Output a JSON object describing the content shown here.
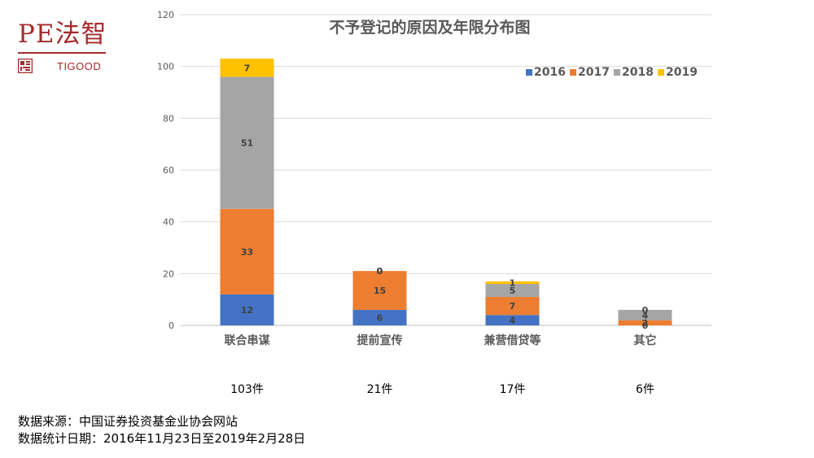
{
  "logo": {
    "main": "PE法智",
    "sub": "TIGOOD"
  },
  "chart_data": {
    "type": "bar",
    "stacked": true,
    "title": "不予登记的原因及年限分布图",
    "categories": [
      "联合串谋",
      "提前宣传",
      "兼营借贷等",
      "其它"
    ],
    "totals": [
      "103件",
      "21件",
      "17件",
      "6件"
    ],
    "series": [
      {
        "name": "2016",
        "color": "#4472c4",
        "values": [
          12,
          6,
          4,
          0
        ]
      },
      {
        "name": "2017",
        "color": "#ed7d31",
        "values": [
          33,
          15,
          7,
          2
        ]
      },
      {
        "name": "2018",
        "color": "#a5a5a5",
        "values": [
          51,
          0,
          5,
          4
        ]
      },
      {
        "name": "2019",
        "color": "#ffc000",
        "values": [
          7,
          0,
          1,
          0
        ]
      }
    ],
    "ylim": [
      0,
      120
    ],
    "yticks": [
      0,
      20,
      40,
      60,
      80,
      100,
      120
    ],
    "grid": true,
    "legend": "top-right"
  },
  "footer": {
    "source": "数据来源：中国证券投资基金业协会网站",
    "period": "数据统计日期：2016年11月23日至2019年2月28日"
  }
}
